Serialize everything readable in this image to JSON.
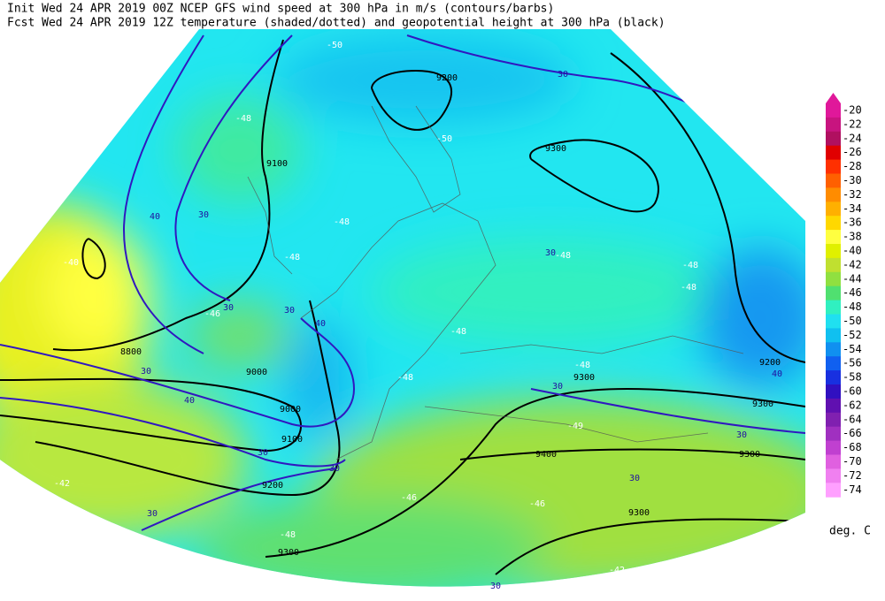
{
  "header": {
    "line1": "Init  Wed 24 APR 2019 00Z  NCEP GFS wind speed at 300 hPa in m/s (contours/barbs)",
    "line2": "Fcst Wed 24 APR 2019 12Z  temperature (shaded/dotted) and geopotential height at 300 hPa (black)"
  },
  "colorbar": {
    "labels": [
      "-20",
      "-22",
      "-24",
      "-26",
      "-28",
      "-30",
      "-32",
      "-34",
      "-36",
      "-38",
      "-40",
      "-42",
      "-44",
      "-46",
      "-48",
      "-50",
      "-52",
      "-54",
      "-56",
      "-58",
      "-60",
      "-62",
      "-64",
      "-66",
      "-68",
      "-70",
      "-72",
      "-74"
    ],
    "colors": [
      "#e0189a",
      "#c8147f",
      "#b01060",
      "#e00000",
      "#ff3000",
      "#ff6000",
      "#ff8c00",
      "#ffb000",
      "#ffd800",
      "#ffff40",
      "#e0f000",
      "#c0e030",
      "#90e040",
      "#50e070",
      "#30f0c0",
      "#20e0f0",
      "#10c0f0",
      "#1090f0",
      "#1060f0",
      "#1830e0",
      "#3010c0",
      "#6010b0",
      "#8020b0",
      "#a030c0",
      "#c040d0",
      "#e060e0",
      "#f080f0",
      "#ffa0ff"
    ],
    "unit": "deg. C"
  },
  "height_labels": [
    "9100",
    "9200",
    "9300",
    "8800",
    "9000",
    "9000",
    "9100",
    "9200",
    "9300",
    "9300",
    "9300",
    "9300",
    "9400",
    "9300",
    "9200"
  ],
  "wind_labels": [
    "30",
    "40",
    "30",
    "30",
    "30",
    "40",
    "30",
    "40",
    "30",
    "30",
    "30",
    "30",
    "30",
    "30",
    "30",
    "40",
    "30"
  ],
  "temperature_labels": [
    "-50",
    "-48",
    "-50",
    "-48",
    "-48",
    "-46",
    "-40",
    "-48",
    "-48",
    "-48",
    "-42",
    "-46",
    "-46",
    "-48",
    "-49",
    "-48",
    "-48",
    "-48",
    "-42"
  ]
}
